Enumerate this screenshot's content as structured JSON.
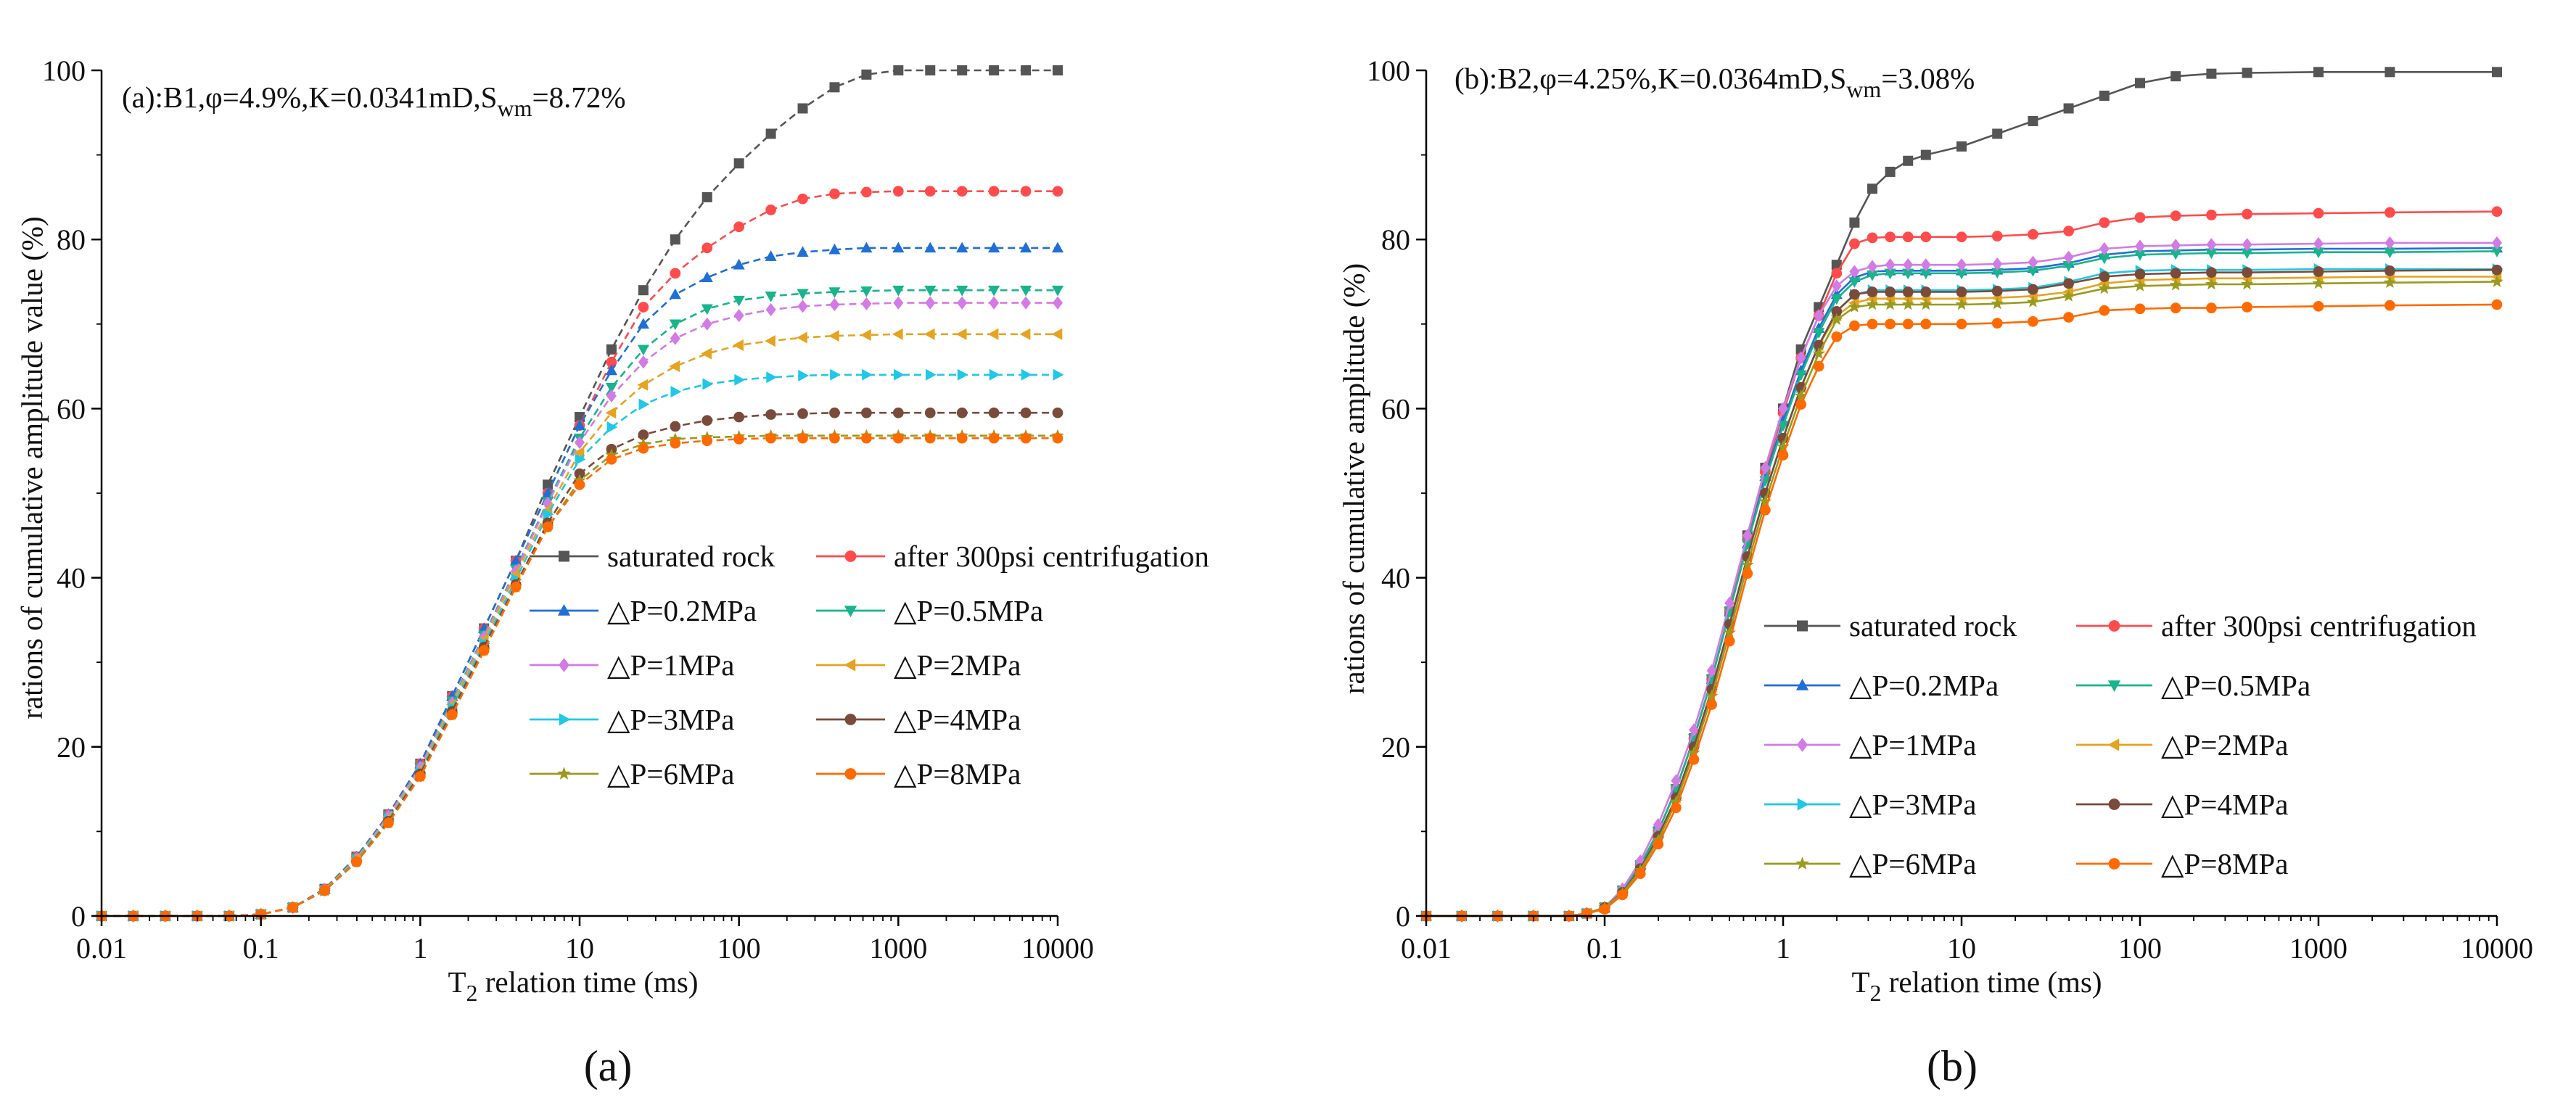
{
  "figure": {
    "panel_a_label": "(a)",
    "panel_b_label": "(b)"
  },
  "chart_data": [
    {
      "type": "line",
      "id": "a",
      "annotation": {
        "prefix": "(a):B1,φ=4.9%,K=0.0341mD,S",
        "sub": "wm",
        "suffix": "=8.72%"
      },
      "xlabel": {
        "prefix": "T",
        "sub": "2",
        "suffix": " relation time (ms)"
      },
      "ylabel": "rations of cumulative amplitude value (%)",
      "xscale": "log",
      "xlim": [
        0.01,
        10000
      ],
      "ylim": [
        0,
        100
      ],
      "xticks": [
        {
          "v": 0.01,
          "label": "0.01"
        },
        {
          "v": 0.1,
          "label": "0.1"
        },
        {
          "v": 1,
          "label": "1"
        },
        {
          "v": 10,
          "label": "10"
        },
        {
          "v": 100,
          "label": "100"
        },
        {
          "v": 1000,
          "label": "1000"
        },
        {
          "v": 10000,
          "label": "10000"
        }
      ],
      "yticks": [
        {
          "v": 0,
          "label": "0"
        },
        {
          "v": 20,
          "label": "20"
        },
        {
          "v": 40,
          "label": "40"
        },
        {
          "v": 60,
          "label": "60"
        },
        {
          "v": 80,
          "label": "80"
        },
        {
          "v": 100,
          "label": "100"
        }
      ],
      "legend_position": "lower-right",
      "x": [
        0.01,
        0.0158,
        0.0251,
        0.0398,
        0.0631,
        0.1,
        0.1585,
        0.2512,
        0.3981,
        0.631,
        1,
        1.585,
        2.512,
        3.981,
        6.31,
        10,
        15.85,
        25.12,
        39.81,
        63.1,
        100,
        158.5,
        251.2,
        398.1,
        631,
        1000,
        1585,
        2512,
        3981,
        6310,
        10000
      ],
      "series": [
        {
          "name": "saturated rock",
          "color": "#555555",
          "marker": "square",
          "values": [
            0,
            0,
            0,
            0,
            0,
            0.2,
            1.0,
            3.2,
            7.0,
            12.0,
            18.0,
            26.0,
            34.0,
            42.0,
            51.0,
            59.0,
            67.0,
            74.0,
            80.0,
            85.0,
            89.0,
            92.5,
            95.5,
            98.0,
            99.5,
            100,
            100,
            100,
            100,
            100,
            100
          ]
        },
        {
          "name": "after 300psi centrifugation",
          "color": "#ff4b4b",
          "marker": "circle",
          "values": [
            0,
            0,
            0,
            0,
            0,
            0.2,
            1.0,
            3.2,
            7.0,
            12.0,
            18.0,
            26.0,
            34.0,
            42.0,
            50.0,
            58.0,
            65.5,
            72.0,
            76.0,
            79.0,
            81.5,
            83.5,
            84.8,
            85.4,
            85.6,
            85.7,
            85.7,
            85.7,
            85.7,
            85.7,
            85.7
          ]
        },
        {
          "name": "△P=0.2MPa",
          "color": "#1f6fd6",
          "marker": "triangle-up",
          "values": [
            0,
            0,
            0,
            0,
            0,
            0.2,
            1.0,
            3.2,
            7.0,
            12.0,
            18.0,
            26.0,
            34.0,
            42.0,
            50.0,
            58.0,
            64.5,
            70.0,
            73.5,
            75.5,
            77.0,
            78.0,
            78.5,
            78.8,
            79.0,
            79.0,
            79.0,
            79.0,
            79.0,
            79.0,
            79.0
          ]
        },
        {
          "name": "△P=0.5MPa",
          "color": "#19b48c",
          "marker": "triangle-down",
          "values": [
            0,
            0,
            0,
            0,
            0,
            0.2,
            1.0,
            3.1,
            6.8,
            11.8,
            17.6,
            25.4,
            33.2,
            41.0,
            49.0,
            56.5,
            62.5,
            67.0,
            70.0,
            71.8,
            72.8,
            73.3,
            73.6,
            73.8,
            73.9,
            74.0,
            74.0,
            74.0,
            74.0,
            74.0,
            74.0
          ]
        },
        {
          "name": "△P=1MPa",
          "color": "#d27be6",
          "marker": "diamond",
          "values": [
            0,
            0,
            0,
            0,
            0,
            0.2,
            1.0,
            3.1,
            6.8,
            11.8,
            17.6,
            25.2,
            33.0,
            40.8,
            48.8,
            56.0,
            61.5,
            65.5,
            68.3,
            70.0,
            71.0,
            71.7,
            72.1,
            72.3,
            72.4,
            72.5,
            72.5,
            72.5,
            72.5,
            72.5,
            72.5
          ]
        },
        {
          "name": "△P=2MPa",
          "color": "#e6a320",
          "marker": "triangle-left",
          "values": [
            0,
            0,
            0,
            0,
            0,
            0.2,
            1.0,
            3.1,
            6.8,
            11.6,
            17.3,
            25.0,
            32.7,
            40.4,
            48.0,
            54.8,
            59.5,
            62.8,
            65.0,
            66.5,
            67.5,
            68.0,
            68.4,
            68.6,
            68.7,
            68.8,
            68.8,
            68.8,
            68.8,
            68.8,
            68.8
          ]
        },
        {
          "name": "△P=3MPa",
          "color": "#1ec8e6",
          "marker": "triangle-right",
          "values": [
            0,
            0,
            0,
            0,
            0,
            0.2,
            1.0,
            3.0,
            6.6,
            11.4,
            17.0,
            24.6,
            32.2,
            39.8,
            47.5,
            54.0,
            57.8,
            60.5,
            62.0,
            62.9,
            63.4,
            63.7,
            63.9,
            64.0,
            64.0,
            64.0,
            64.0,
            64.0,
            64.0,
            64.0,
            64.0
          ]
        },
        {
          "name": "△P=4MPa",
          "color": "#7a4a3a",
          "marker": "circle",
          "values": [
            0,
            0,
            0,
            0,
            0,
            0.2,
            1.0,
            3.0,
            6.4,
            11.2,
            16.8,
            24.2,
            31.8,
            39.2,
            46.5,
            52.3,
            55.2,
            56.9,
            57.9,
            58.6,
            59.0,
            59.3,
            59.4,
            59.5,
            59.5,
            59.5,
            59.5,
            59.5,
            59.5,
            59.5,
            59.5
          ]
        },
        {
          "name": "△P=6MPa",
          "color": "#9a9a1e",
          "marker": "star",
          "values": [
            0,
            0,
            0,
            0,
            0,
            0.2,
            1.0,
            3.0,
            6.4,
            11.0,
            16.5,
            23.8,
            31.4,
            38.9,
            46.0,
            51.5,
            54.5,
            55.8,
            56.4,
            56.6,
            56.7,
            56.8,
            56.8,
            56.8,
            56.8,
            56.8,
            56.8,
            56.8,
            56.8,
            56.8,
            56.8
          ]
        },
        {
          "name": "△P=8MPa",
          "color": "#ff6a00",
          "marker": "circle",
          "values": [
            0,
            0,
            0,
            0,
            0,
            0.2,
            1.0,
            3.0,
            6.4,
            11.0,
            16.5,
            23.8,
            31.4,
            38.9,
            46.0,
            51.0,
            54.0,
            55.3,
            55.9,
            56.2,
            56.4,
            56.5,
            56.5,
            56.5,
            56.5,
            56.5,
            56.5,
            56.5,
            56.5,
            56.5,
            56.5
          ]
        }
      ]
    },
    {
      "type": "line",
      "id": "b",
      "annotation": {
        "prefix": "(b):B2,φ=4.25%,K=0.0364mD,S",
        "sub": "wm",
        "suffix": "=3.08%"
      },
      "xlabel": {
        "prefix": "T",
        "sub": "2",
        "suffix": " relation time (ms)"
      },
      "ylabel": "rations of cumulative amplitude (%)",
      "xscale": "log",
      "xlim": [
        0.01,
        10000
      ],
      "ylim": [
        0,
        100
      ],
      "xticks": [
        {
          "v": 0.01,
          "label": "0.01"
        },
        {
          "v": 0.1,
          "label": "0.1"
        },
        {
          "v": 1,
          "label": "1"
        },
        {
          "v": 10,
          "label": "10"
        },
        {
          "v": 100,
          "label": "100"
        },
        {
          "v": 1000,
          "label": "1000"
        },
        {
          "v": 10000,
          "label": "10000"
        }
      ],
      "yticks": [
        {
          "v": 0,
          "label": "0"
        },
        {
          "v": 20,
          "label": "20"
        },
        {
          "v": 40,
          "label": "40"
        },
        {
          "v": 60,
          "label": "60"
        },
        {
          "v": 80,
          "label": "80"
        },
        {
          "v": 100,
          "label": "100"
        }
      ],
      "legend_position": "lower-right",
      "x": [
        0.01,
        0.0158,
        0.0251,
        0.0398,
        0.0631,
        0.0794,
        0.1,
        0.1259,
        0.1585,
        0.1995,
        0.2512,
        0.3162,
        0.3981,
        0.5012,
        0.631,
        0.7943,
        1,
        1.259,
        1.585,
        1.995,
        2.512,
        3.162,
        3.981,
        5.012,
        6.31,
        10,
        15.85,
        25.12,
        39.81,
        63.1,
        100,
        158.5,
        251.2,
        398.1,
        1000,
        2512,
        10000
      ],
      "series": [
        {
          "name": "saturated rock",
          "color": "#555555",
          "marker": "square",
          "values": [
            0,
            0,
            0,
            0,
            0,
            0.3,
            1.0,
            3.0,
            6.0,
            10.0,
            15.0,
            21.0,
            28.0,
            36.0,
            45.0,
            53.0,
            60.0,
            67.0,
            72.0,
            77.0,
            82.0,
            86.0,
            88.0,
            89.3,
            90.0,
            91.0,
            92.5,
            94.0,
            95.5,
            97.0,
            98.5,
            99.3,
            99.6,
            99.7,
            99.8,
            99.8,
            99.8
          ]
        },
        {
          "name": "after 300psi centrifugation",
          "color": "#ff4b4b",
          "marker": "circle",
          "values": [
            0,
            0,
            0,
            0,
            0,
            0.3,
            1.0,
            3.0,
            6.0,
            10.0,
            15.0,
            21.0,
            28.0,
            36.0,
            44.5,
            52.5,
            59.5,
            66.0,
            71.0,
            76.0,
            79.5,
            80.2,
            80.3,
            80.3,
            80.3,
            80.3,
            80.4,
            80.6,
            81.0,
            82.0,
            82.6,
            82.8,
            82.9,
            83.0,
            83.1,
            83.2,
            83.3
          ]
        },
        {
          "name": "△P=0.2MPa",
          "color": "#1f6fd6",
          "marker": "triangle-up",
          "values": [
            0,
            0,
            0,
            0,
            0,
            0.3,
            1.0,
            3.0,
            6.0,
            10.0,
            15.0,
            21.0,
            28.0,
            36.0,
            44.0,
            52.0,
            58.5,
            64.5,
            69.5,
            73.5,
            75.5,
            76.2,
            76.3,
            76.3,
            76.3,
            76.3,
            76.4,
            76.6,
            77.2,
            78.2,
            78.6,
            78.7,
            78.8,
            78.8,
            78.9,
            78.9,
            79.0
          ]
        },
        {
          "name": "△P=0.5MPa",
          "color": "#19b48c",
          "marker": "triangle-down",
          "values": [
            0,
            0,
            0,
            0,
            0,
            0.3,
            1.0,
            3.0,
            6.0,
            10.0,
            15.0,
            21.0,
            28.0,
            36.0,
            44.0,
            51.5,
            58.0,
            64.0,
            69.0,
            73.0,
            75.0,
            75.8,
            76.0,
            76.0,
            76.0,
            76.0,
            76.1,
            76.3,
            76.9,
            77.8,
            78.2,
            78.3,
            78.4,
            78.4,
            78.5,
            78.5,
            78.6
          ]
        },
        {
          "name": "△P=1MPa",
          "color": "#d27be6",
          "marker": "diamond",
          "values": [
            0,
            0,
            0,
            0,
            0,
            0.3,
            1.0,
            3.2,
            6.5,
            10.8,
            16.0,
            22.0,
            29.0,
            37.0,
            45.0,
            53.0,
            60.0,
            66.0,
            71.0,
            74.5,
            76.2,
            76.8,
            77.0,
            77.0,
            77.0,
            77.0,
            77.1,
            77.3,
            77.9,
            78.9,
            79.2,
            79.3,
            79.4,
            79.4,
            79.5,
            79.6,
            79.6
          ]
        },
        {
          "name": "△P=2MPa",
          "color": "#e6a320",
          "marker": "triangle-left",
          "values": [
            0,
            0,
            0,
            0,
            0,
            0.3,
            1.0,
            2.8,
            5.6,
            9.4,
            14.0,
            20.0,
            26.8,
            34.5,
            42.5,
            50.0,
            56.5,
            62.5,
            67.5,
            71.0,
            72.5,
            73.0,
            73.0,
            73.0,
            73.0,
            73.0,
            73.1,
            73.3,
            73.8,
            74.8,
            75.2,
            75.3,
            75.4,
            75.4,
            75.5,
            75.6,
            75.6
          ]
        },
        {
          "name": "△P=3MPa",
          "color": "#1ec8e6",
          "marker": "triangle-right",
          "values": [
            0,
            0,
            0,
            0,
            0,
            0.3,
            1.0,
            2.8,
            5.6,
            9.4,
            14.0,
            20.0,
            26.8,
            34.5,
            42.5,
            50.0,
            56.5,
            62.5,
            67.5,
            71.5,
            73.5,
            74.0,
            74.0,
            74.0,
            74.0,
            74.0,
            74.1,
            74.3,
            75.0,
            76.0,
            76.3,
            76.4,
            76.4,
            76.4,
            76.5,
            76.5,
            76.5
          ]
        },
        {
          "name": "△P=4MPa",
          "color": "#7a4a3a",
          "marker": "circle",
          "values": [
            0,
            0,
            0,
            0,
            0,
            0.3,
            1.0,
            2.8,
            5.6,
            9.4,
            14.0,
            20.0,
            26.8,
            34.5,
            42.5,
            50.0,
            56.5,
            62.5,
            67.5,
            71.5,
            73.5,
            73.8,
            73.8,
            73.8,
            73.8,
            73.8,
            73.9,
            74.1,
            74.8,
            75.6,
            75.9,
            76.0,
            76.1,
            76.1,
            76.2,
            76.3,
            76.4
          ]
        },
        {
          "name": "△P=6MPa",
          "color": "#9a9a1e",
          "marker": "star",
          "values": [
            0,
            0,
            0,
            0,
            0,
            0.3,
            1.0,
            2.7,
            5.4,
            9.0,
            13.5,
            19.3,
            26.0,
            33.5,
            41.5,
            49.0,
            55.5,
            61.5,
            66.5,
            70.5,
            72.0,
            72.3,
            72.3,
            72.3,
            72.3,
            72.3,
            72.4,
            72.6,
            73.3,
            74.2,
            74.5,
            74.6,
            74.7,
            74.7,
            74.8,
            74.9,
            75.0
          ]
        },
        {
          "name": "△P=8MPa",
          "color": "#ff6a00",
          "marker": "circle",
          "values": [
            0,
            0,
            0,
            0,
            0,
            0.3,
            0.8,
            2.5,
            5.0,
            8.5,
            12.8,
            18.5,
            25.0,
            32.5,
            40.5,
            48.0,
            54.5,
            60.5,
            65.0,
            68.5,
            69.8,
            70.0,
            70.0,
            70.0,
            70.0,
            70.0,
            70.1,
            70.3,
            70.8,
            71.6,
            71.8,
            71.9,
            71.9,
            72.0,
            72.1,
            72.2,
            72.3
          ]
        }
      ]
    }
  ]
}
